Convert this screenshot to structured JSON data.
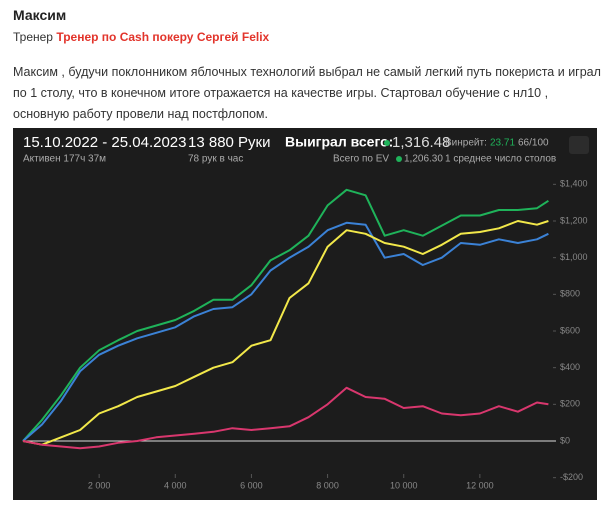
{
  "document": {
    "title": "Максим",
    "coach_label": "Тренер",
    "coach_link": "Тренер по Cash покеру Сергей Felix",
    "paragraph": "Максим , будучи поклонником яблочных технологий выбрал не самый легкий путь покериста и играл по 1 столу, что в конечном итоге отражается на качестве игры. Стартовал обучение с нл10 , основную работу провели над постфлопом."
  },
  "chart_data": {
    "type": "line",
    "header": {
      "period": "15.10.2022 - 25.04.2023",
      "active": "Активен 177ч 37м",
      "hands": "13 880 Руки",
      "per_hour": "78 рук в час",
      "won_label": "Выиграл всего:",
      "won_value": "1,316.48",
      "winrate_label": "Винрейт:",
      "winrate_value": "23.71",
      "winrate_unit": "66/100",
      "ev_label": "Всего по EV",
      "ev_value": "1,206.30",
      "tables": "1 среднее число столов"
    },
    "x": [
      0,
      500,
      1000,
      1500,
      2000,
      2500,
      3000,
      3500,
      4000,
      4500,
      5000,
      5500,
      6000,
      6500,
      7000,
      7500,
      8000,
      8500,
      9000,
      9500,
      10000,
      10500,
      11000,
      11500,
      12000,
      12500,
      13000,
      13500,
      13800
    ],
    "series": [
      {
        "color": "#1fb35a",
        "values": [
          0,
          115,
          250,
          400,
          495,
          550,
          600,
          630,
          660,
          710,
          770,
          770,
          850,
          985,
          1040,
          1120,
          1285,
          1370,
          1340,
          1120,
          1150,
          1120,
          1175,
          1230,
          1230,
          1260,
          1260,
          1270,
          1310
        ]
      },
      {
        "color": "#3b82d6",
        "values": [
          0,
          90,
          220,
          380,
          470,
          520,
          560,
          590,
          620,
          680,
          720,
          730,
          800,
          930,
          1000,
          1060,
          1150,
          1190,
          1180,
          1000,
          1020,
          960,
          1000,
          1080,
          1070,
          1100,
          1080,
          1100,
          1130
        ]
      },
      {
        "color": "#f2e84a",
        "values": [
          0,
          -20,
          20,
          60,
          150,
          190,
          240,
          270,
          300,
          350,
          400,
          430,
          520,
          550,
          780,
          860,
          1060,
          1150,
          1130,
          1080,
          1060,
          1020,
          1070,
          1130,
          1140,
          1160,
          1200,
          1180,
          1200
        ]
      },
      {
        "color": "#d9376e",
        "values": [
          0,
          -20,
          -30,
          -40,
          -30,
          -10,
          0,
          20,
          30,
          40,
          50,
          70,
          60,
          70,
          80,
          130,
          200,
          290,
          240,
          230,
          180,
          190,
          150,
          140,
          150,
          190,
          160,
          210,
          200
        ]
      }
    ],
    "xlim": [
      0,
      14000
    ],
    "ylim": [
      -300,
      1500
    ],
    "xticks": [
      {
        "value": 2000,
        "label": "2 000"
      },
      {
        "value": 4000,
        "label": "4 000"
      },
      {
        "value": 6000,
        "label": "6 000"
      },
      {
        "value": 8000,
        "label": "8 000"
      },
      {
        "value": 10000,
        "label": "10 000"
      },
      {
        "value": 12000,
        "label": "12 000"
      }
    ],
    "yticks": [
      {
        "value": -200,
        "label": "-$200"
      },
      {
        "value": 0,
        "label": "$0"
      },
      {
        "value": 200,
        "label": "$200"
      },
      {
        "value": 400,
        "label": "$400"
      },
      {
        "value": 600,
        "label": "$600"
      },
      {
        "value": 800,
        "label": "$800"
      },
      {
        "value": 1000,
        "label": "$1,000"
      },
      {
        "value": 1200,
        "label": "$1,200"
      },
      {
        "value": 1400,
        "label": "$1,400"
      }
    ],
    "zero_line": true
  }
}
